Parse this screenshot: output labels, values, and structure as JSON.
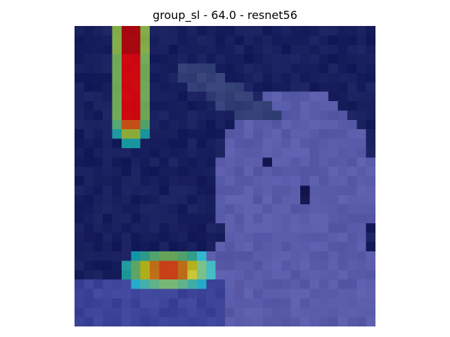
{
  "title": "group_sl - 64.0 - resnet56",
  "image": {
    "description_tag": "gradcam-heatmap-overlay",
    "colormap": "jet",
    "base_tint": "#2a3a8a",
    "hotspots": [
      {
        "name": "upper-left-vertical-band",
        "peak_color": "#7a1a0a"
      },
      {
        "name": "lower-left-horizontal-blob",
        "peak_color": "#e8785a"
      }
    ]
  }
}
